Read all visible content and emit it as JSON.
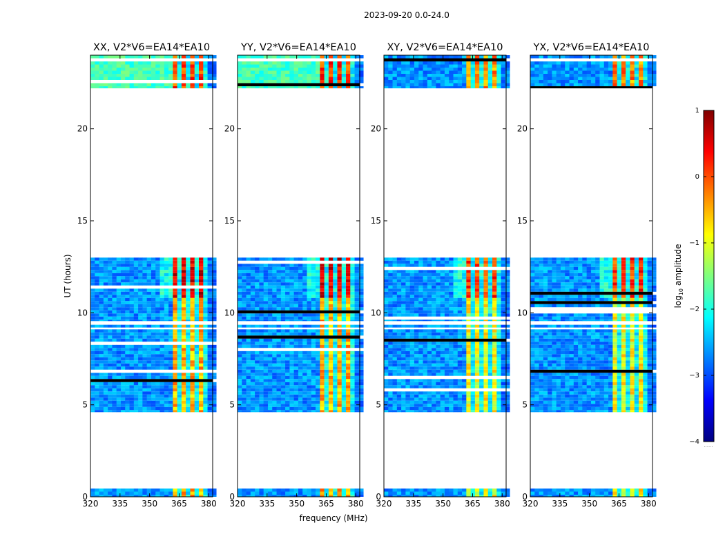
{
  "figure": {
    "suptitle": "2023-09-20 0.0-24.0",
    "xlabel": "frequency (MHz)",
    "ylabel": "UT (hours)"
  },
  "colorbar": {
    "label_prefix": "log",
    "label_sub": "10",
    "label_suffix": " amplitude",
    "range": [
      -4,
      1
    ],
    "ticks": [
      1,
      0,
      -1,
      -2,
      -3,
      -4
    ],
    "tick_labels": [
      "1",
      "0",
      "−1",
      "−2",
      "−3",
      "−4"
    ],
    "footer": "......",
    "colormap": "jet",
    "colormap_stops": [
      "#00007f",
      "#0000ff",
      "#007fff",
      "#00ffff",
      "#7fff7f",
      "#ffff00",
      "#ff7f00",
      "#ff0000",
      "#7f0000"
    ]
  },
  "chart_data": {
    "type": "heatmap",
    "x_range": [
      320,
      382
    ],
    "y_range": [
      0,
      24
    ],
    "x_ticks": [
      320,
      335,
      350,
      365,
      380
    ],
    "y_ticks": [
      0,
      5,
      10,
      15,
      20
    ],
    "observed_ut_blocks": [
      [
        0,
        0.45
      ],
      [
        4.6,
        9.1
      ],
      [
        9.2,
        9.35
      ],
      [
        9.55,
        13.0
      ],
      [
        22.2,
        24.0
      ]
    ],
    "panels": [
      {
        "title": "XX, V2*V6=EA14*EA10",
        "pol": "XX"
      },
      {
        "title": "YY, V2*V6=EA14*EA10",
        "pol": "YY"
      },
      {
        "title": "XY, V2*V6=EA14*EA10",
        "pol": "XY"
      },
      {
        "title": "YX, V2*V6=EA14*EA10",
        "pol": "YX"
      }
    ]
  }
}
